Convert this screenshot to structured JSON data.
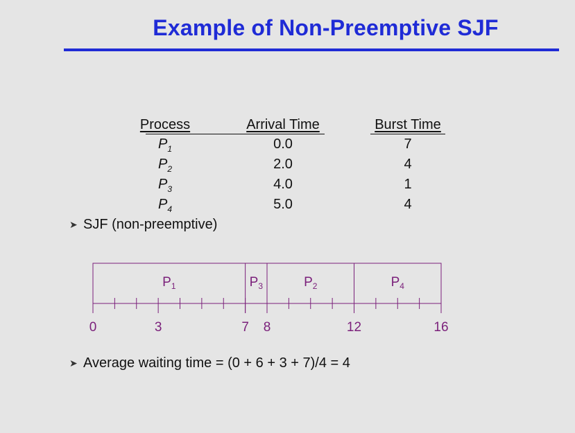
{
  "title": "Example of Non-Preemptive SJF",
  "table": {
    "headers": {
      "process": "Process",
      "arrival": "Arrival Time",
      "burst": "Burst Time"
    },
    "rows": [
      {
        "process": "P",
        "sub": "1",
        "arrival": "0.0",
        "burst": "7"
      },
      {
        "process": "P",
        "sub": "2",
        "arrival": "2.0",
        "burst": "4"
      },
      {
        "process": "P",
        "sub": "3",
        "arrival": "4.0",
        "burst": "1"
      },
      {
        "process": "P",
        "sub": "4",
        "arrival": "5.0",
        "burst": "4"
      }
    ]
  },
  "bullet1": "SJF (non-preemptive)",
  "gantt": {
    "segments": [
      {
        "label": "P",
        "sub": "1",
        "start": 0,
        "end": 7
      },
      {
        "label": "P",
        "sub": "3",
        "start": 7,
        "end": 8
      },
      {
        "label": "P",
        "sub": "2",
        "start": 8,
        "end": 12
      },
      {
        "label": "P",
        "sub": "4",
        "start": 12,
        "end": 16
      }
    ],
    "axis_labels": [
      "0",
      "3",
      "7",
      "8",
      "12",
      "16"
    ],
    "label_values": [
      0,
      3,
      7,
      8,
      12,
      16
    ],
    "max": 16,
    "label_color": "#7a1f7a"
  },
  "bullet2": "Average waiting time = (0 + 6 + 3 + 7)/4 = 4"
}
